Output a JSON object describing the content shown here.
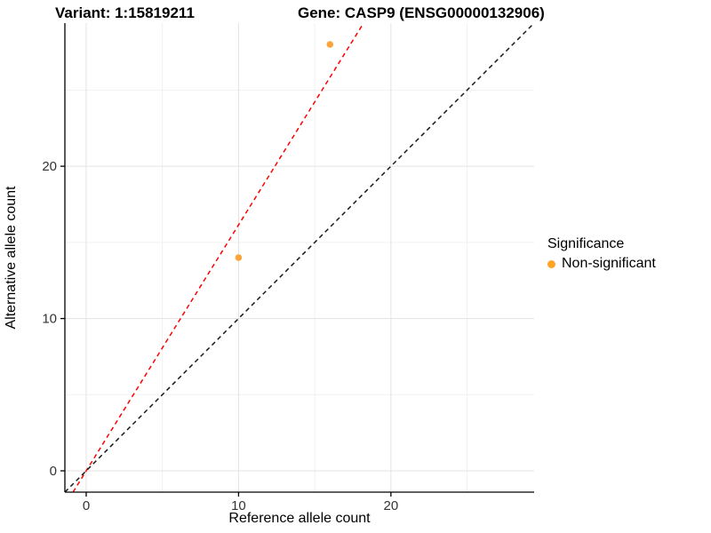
{
  "chart_data": {
    "type": "scatter",
    "title_left": "Variant: 1:15819211",
    "title_right": "Gene: CASP9 (ENSG00000132906)",
    "xlabel": "Reference allele count",
    "ylabel": "Alternative allele count",
    "xlim": [
      -1.4,
      29.4
    ],
    "ylim": [
      -1.4,
      29.4
    ],
    "xticks": [
      0,
      10,
      20
    ],
    "yticks": [
      0,
      10,
      20
    ],
    "xticks_minor": [
      5,
      15,
      25
    ],
    "yticks_minor": [
      5,
      15,
      25
    ],
    "grid": "on",
    "points": [
      {
        "x": 10,
        "y": 14,
        "series": "Non-significant"
      },
      {
        "x": 16,
        "y": 28,
        "series": "Non-significant"
      }
    ],
    "lines": [
      {
        "name": "ratio-line",
        "slope": 1.615,
        "intercept": 0,
        "color": "#FF0000",
        "style": "dashed"
      },
      {
        "name": "identity-line",
        "slope": 1,
        "intercept": 0,
        "color": "#1A1A1A",
        "style": "dashed"
      }
    ],
    "legend": {
      "title": "Significance",
      "position": "right",
      "items": [
        {
          "label": "Non-significant",
          "color": "#FFA424"
        }
      ]
    },
    "colors": {
      "point": "#FAA43A",
      "grid_major": "#E3E3E3",
      "grid_minor": "#F1F1F1",
      "axis_line": "#000000",
      "tick_label": "#333333"
    }
  }
}
